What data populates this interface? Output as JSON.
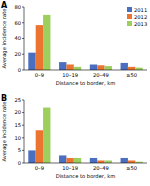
{
  "chart_data": [
    {
      "type": "bar",
      "title": "A",
      "x_label": "Distance to border, km",
      "y_label": "Average incidence rate",
      "categories": [
        "0–9",
        "10–19",
        "20–49",
        "≥50"
      ],
      "series": [
        {
          "name": "2011",
          "color": "#4a6fc1",
          "values": [
            22,
            10,
            7,
            9
          ]
        },
        {
          "name": "2012",
          "color": "#ec7431",
          "values": [
            57,
            7,
            6,
            4
          ]
        },
        {
          "name": "2013",
          "color": "#9ccf5e",
          "values": [
            70,
            4,
            5,
            3
          ]
        }
      ],
      "ylim": [
        0,
        80
      ],
      "yticks": [
        0,
        20,
        40,
        60,
        80
      ],
      "grid": false,
      "legend": "top-right"
    },
    {
      "type": "bar",
      "title": "B",
      "x_label": "Distance to border, km",
      "y_label": "Average incidence rate",
      "categories": [
        "0–9",
        "10–19",
        "20–49",
        "≥50"
      ],
      "series": [
        {
          "name": "2011",
          "color": "#4a6fc1",
          "values": [
            5,
            3,
            2,
            2
          ]
        },
        {
          "name": "2012",
          "color": "#ec7431",
          "values": [
            13,
            2,
            1,
            1
          ]
        },
        {
          "name": "2013",
          "color": "#9ccf5e",
          "values": [
            22,
            2,
            1,
            0.5
          ]
        }
      ],
      "ylim": [
        0,
        25
      ],
      "yticks": [
        0,
        5,
        10,
        15,
        20,
        25
      ],
      "grid": false
    }
  ]
}
